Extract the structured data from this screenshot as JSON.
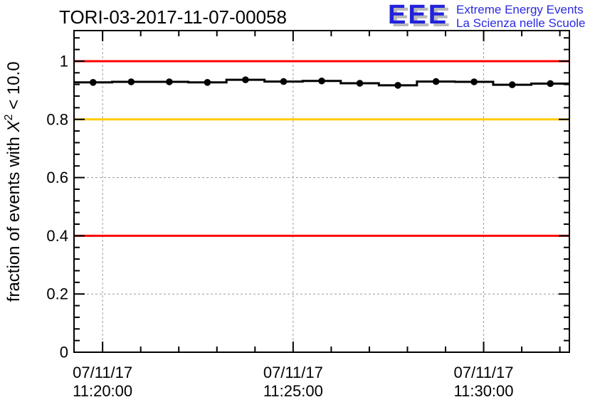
{
  "page": {
    "background": "#ffffff"
  },
  "logo": {
    "acronym": "EEE",
    "line1": "Extreme Energy Events",
    "line2": "La Scienza nelle Scuole",
    "color": "#2222dd",
    "shadow_color": "#b9b9b9"
  },
  "chart_data": {
    "type": "line",
    "title": "TORI-03-2017-11-07-00058",
    "xlabel": "",
    "ylabel": {
      "prefix": "fraction of events with ",
      "variable": "X",
      "superscript": "2",
      "suffix": " < 10.0"
    },
    "legend": "none",
    "grid": "dashed-gray-at-major-ticks",
    "grid_color": "#9b9b9b",
    "x_axis": {
      "date": "07/11/17",
      "start": "11:19:15",
      "end": "11:32:15",
      "major_ticks": [
        {
          "time": "11:20:00",
          "label_line1": "07/11/17",
          "label_line2": "11:20:00"
        },
        {
          "time": "11:25:00",
          "label_line1": "07/11/17",
          "label_line2": "11:25:00"
        },
        {
          "time": "11:30:00",
          "label_line1": "07/11/17",
          "label_line2": "11:30:00"
        }
      ],
      "minor_tick_step_seconds": 60
    },
    "y_axis": {
      "min": 0,
      "max": 1.105,
      "major_ticks": [
        0,
        0.2,
        0.4,
        0.6,
        0.8,
        1.0
      ],
      "tick_labels": [
        "0",
        "0.2",
        "0.4",
        "0.6",
        "0.8",
        "1"
      ],
      "minor_tick_step": 0.04
    },
    "reference_lines": [
      {
        "y": 1.0,
        "color": "#ff0000"
      },
      {
        "y": 0.8,
        "color": "#ffcc00"
      },
      {
        "y": 0.4,
        "color": "#ff0000"
      }
    ],
    "series": [
      {
        "name": "fraction of events with X^2 < 10.0",
        "color": "#000000",
        "marker": "filled-circle",
        "bin_width_seconds": 60,
        "points": [
          {
            "time": "11:19:45",
            "value": 0.927
          },
          {
            "time": "11:20:45",
            "value": 0.929
          },
          {
            "time": "11:21:45",
            "value": 0.929
          },
          {
            "time": "11:22:45",
            "value": 0.927
          },
          {
            "time": "11:23:45",
            "value": 0.936
          },
          {
            "time": "11:24:45",
            "value": 0.93
          },
          {
            "time": "11:25:45",
            "value": 0.932
          },
          {
            "time": "11:26:45",
            "value": 0.924
          },
          {
            "time": "11:27:45",
            "value": 0.917
          },
          {
            "time": "11:28:45",
            "value": 0.93
          },
          {
            "time": "11:29:45",
            "value": 0.929
          },
          {
            "time": "11:30:45",
            "value": 0.919
          },
          {
            "time": "11:31:45",
            "value": 0.923
          }
        ]
      }
    ]
  }
}
